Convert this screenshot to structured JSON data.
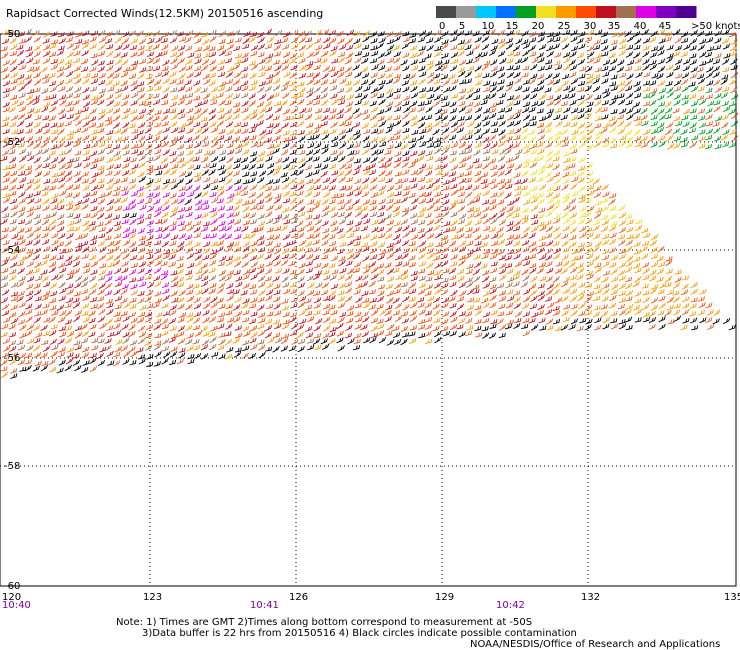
{
  "title": "Rapidsact Corrected Winds(12.5KM) 20150516 ascending",
  "legend": {
    "values": [
      "0",
      "5",
      "10",
      "15",
      "20",
      "25",
      "30",
      "35",
      "40",
      "45",
      ">50 knots"
    ],
    "colors": [
      "#4a4a4a",
      "#9a9a9a",
      "#00c8ff",
      "#0070ff",
      "#00a020",
      "#f0e020",
      "#ff9a00",
      "#ff4a00",
      "#c01020",
      "#a07050",
      "#e000e8",
      "#8000c0",
      "#500090"
    ]
  },
  "axes": {
    "latitude_labels": [
      "-50",
      "-52",
      "-54",
      "-56",
      "-58",
      "-60"
    ],
    "longitude_labels": [
      "120",
      "123",
      "126",
      "129",
      "132",
      "135"
    ],
    "time_labels": [
      "10:40",
      "10:41",
      "10:42"
    ]
  },
  "notes": {
    "line1": "Note: 1) Times are GMT 2)Times along bottom correspond to measurement at -50S",
    "line2": "3)Data buffer is 22 hrs from 20150516 4) Black circles indicate possible contamination",
    "line3": "NOAA/NESDIS/Office of Research and Applications"
  },
  "map": {
    "lat_range": [
      -50,
      -60
    ],
    "lon_range": [
      120,
      135
    ],
    "swath_description": "Dense ascending-pass swath of wind barbs across the upper portion of the map"
  }
}
